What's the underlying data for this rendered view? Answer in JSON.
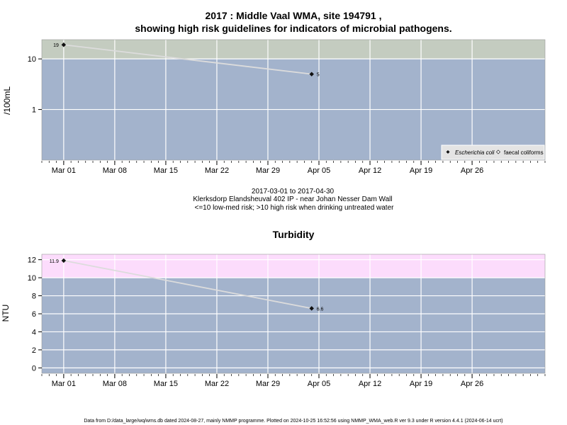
{
  "chart_data": [
    {
      "type": "line",
      "title_line1": "2017 : Middle Vaal WMA, site 194791 ,",
      "title_line2": "showing high risk guidelines for indicators of microbial pathogens.",
      "ylabel": "/100mL",
      "yscale": "log",
      "ylim": [
        0.1,
        24
      ],
      "yticks": [
        1,
        10
      ],
      "ytick_labels": [
        "1",
        "10"
      ],
      "xlim": [
        "2017-02-26",
        "2017-05-06"
      ],
      "xticks": [
        "2017-03-01",
        "2017-03-08",
        "2017-03-15",
        "2017-03-22",
        "2017-03-29",
        "2017-04-05",
        "2017-04-12",
        "2017-04-19",
        "2017-04-26"
      ],
      "xtick_labels": [
        "Mar 01",
        "Mar 08",
        "Mar 15",
        "Mar 22",
        "Mar 29",
        "Apr 05",
        "Apr 12",
        "Apr 19",
        "Apr 26"
      ],
      "threshold": 10,
      "bands": {
        "low": "#a3b3cc",
        "high": "#c4ccc0"
      },
      "line_color": "#dcdcdc",
      "grid": true,
      "series": [
        {
          "name": "Escherichia coli",
          "x": [
            "2017-03-01",
            "2017-04-04"
          ],
          "y": [
            19,
            5
          ],
          "labels": [
            "19",
            "5"
          ],
          "marker": "filled-diamond"
        }
      ],
      "legend": {
        "position": "bottom-right",
        "entries": [
          "Escherichia coli",
          "faecal coliforms"
        ]
      },
      "caption": {
        "date_range": "2017-03-01 to 2017-04-30",
        "site": "Klerksdorp Elandsheuval 402 IP - near Johan Nesser Dam Wall",
        "guideline": "<=10 low-med risk; >10 high risk when drinking untreated water"
      }
    },
    {
      "type": "line",
      "title": "Turbidity",
      "ylabel": "NTU",
      "ylim": [
        -0.6,
        12.6
      ],
      "yticks": [
        0,
        2,
        4,
        6,
        8,
        10,
        12
      ],
      "ytick_labels": [
        "0",
        "2",
        "4",
        "6",
        "8",
        "10",
        "12"
      ],
      "xlim": [
        "2017-02-26",
        "2017-05-06"
      ],
      "xticks": [
        "2017-03-01",
        "2017-03-08",
        "2017-03-15",
        "2017-03-22",
        "2017-03-29",
        "2017-04-05",
        "2017-04-12",
        "2017-04-19",
        "2017-04-26"
      ],
      "xtick_labels": [
        "Mar 01",
        "Mar 08",
        "Mar 15",
        "Mar 22",
        "Mar 29",
        "Apr 05",
        "Apr 12",
        "Apr 19",
        "Apr 26"
      ],
      "threshold": 10,
      "bands": {
        "low": "#a3b3cc",
        "high": "#fcdcfc"
      },
      "line_color": "#dcdcdc",
      "grid": true,
      "series": [
        {
          "x": [
            "2017-03-01",
            "2017-04-04"
          ],
          "y": [
            11.9,
            6.6
          ],
          "labels": [
            "11.9",
            "6.6"
          ],
          "marker": "filled-diamond"
        }
      ]
    }
  ],
  "footer": "Data from D:/data_large/wq/wms.db dated 2024-08-27, mainly NMMP programme. Plotted on 2024-10-25 16:52:56 using NMMP_WMA_web.R ver 9.3 under R version 4.4.1 (2024-06-14 ucrt)"
}
